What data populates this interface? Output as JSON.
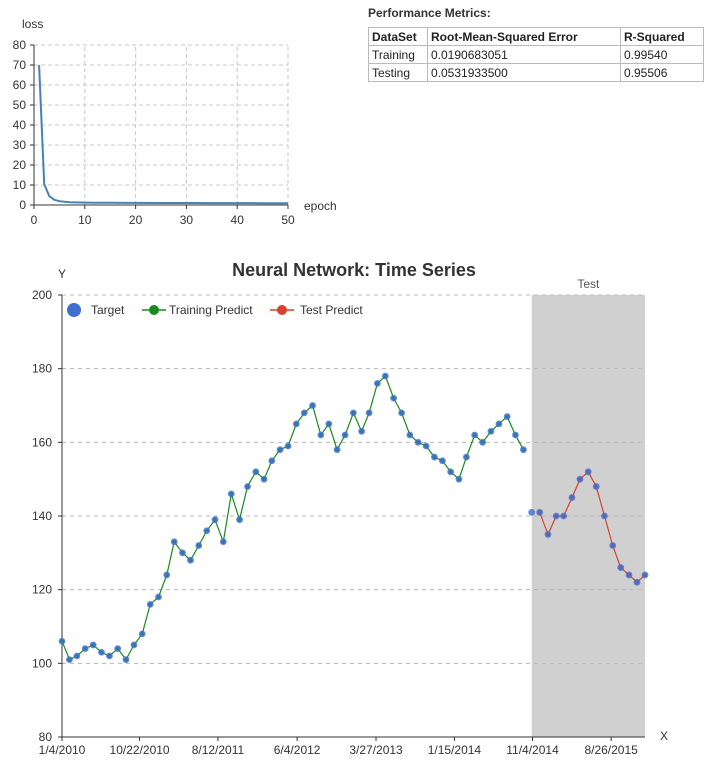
{
  "loss_chart": {
    "type": "line",
    "ylabel": "loss",
    "xlabel": "epoch",
    "xlim": [
      0,
      50
    ],
    "ylim": [
      0,
      80
    ],
    "xticks": [
      0,
      10,
      20,
      30,
      40,
      50
    ],
    "yticks": [
      0,
      10,
      20,
      30,
      40,
      50,
      60,
      70,
      80
    ],
    "color": "#4682b4",
    "x": [
      1,
      2,
      3,
      4,
      5,
      6,
      7,
      8,
      10,
      12,
      15,
      20,
      25,
      30,
      35,
      40,
      45,
      50
    ],
    "y": [
      70,
      10.5,
      4.5,
      2.6,
      1.9,
      1.6,
      1.4,
      1.3,
      1.2,
      1.15,
      1.1,
      1.05,
      1.0,
      1.0,
      0.95,
      0.95,
      0.9,
      0.9
    ]
  },
  "metrics": {
    "title": "Performance Metrics:",
    "headers": [
      "DataSet",
      "Root-Mean-Squared Error",
      "R-Squared"
    ],
    "rows": [
      [
        "Training",
        "0.0190683051",
        "0.99540"
      ],
      [
        "Testing",
        "0.0531933500",
        "0.95506"
      ]
    ]
  },
  "chart_data": {
    "type": "line",
    "title": "Neural Network: Time Series",
    "xlabel": "X",
    "ylabel": "Y",
    "ylim": [
      80,
      200
    ],
    "yticks": [
      80,
      100,
      120,
      140,
      160,
      180,
      200
    ],
    "xticks": [
      "1/4/2010",
      "10/22/2010",
      "8/12/2011",
      "6/4/2012",
      "3/27/2013",
      "1/15/2014",
      "11/4/2014",
      "8/26/2015"
    ],
    "xlim": [
      "1/4/2010",
      "12/31/2015"
    ],
    "test_region": {
      "label": "Test",
      "start": "11/1/2014",
      "end": "12/31/2015",
      "color": "#d0d0d0"
    },
    "legend": {
      "position": "top-left"
    },
    "series": [
      {
        "name": "Target",
        "color": "#3f6fd1",
        "marker": "circle"
      },
      {
        "name": "Training Predict",
        "color": "#1a8a1a",
        "marker": "circle",
        "range": [
          "1/4/2010",
          "10/31/2014"
        ]
      },
      {
        "name": "Test Predict",
        "color": "#d9412a",
        "marker": "circle",
        "range": [
          "11/3/2014",
          "12/31/2015"
        ]
      }
    ],
    "dates": [
      "1/4/2010",
      "2/1/2010",
      "3/1/2010",
      "4/1/2010",
      "5/1/2010",
      "6/1/2010",
      "7/1/2010",
      "8/1/2010",
      "9/1/2010",
      "10/1/2010",
      "11/1/2010",
      "12/1/2010",
      "1/1/2011",
      "2/1/2011",
      "3/1/2011",
      "4/1/2011",
      "5/1/2011",
      "6/1/2011",
      "7/1/2011",
      "8/1/2011",
      "9/1/2011",
      "10/1/2011",
      "11/1/2011",
      "12/1/2011",
      "1/1/2012",
      "2/1/2012",
      "3/1/2012",
      "4/1/2012",
      "5/1/2012",
      "6/1/2012",
      "7/1/2012",
      "8/1/2012",
      "9/1/2012",
      "10/1/2012",
      "11/1/2012",
      "12/1/2012",
      "1/1/2013",
      "2/1/2013",
      "3/1/2013",
      "4/1/2013",
      "5/1/2013",
      "6/1/2013",
      "7/1/2013",
      "8/1/2013",
      "9/1/2013",
      "10/1/2013",
      "11/1/2013",
      "12/1/2013",
      "1/1/2014",
      "2/1/2014",
      "3/1/2014",
      "4/1/2014",
      "5/1/2014",
      "6/1/2014",
      "7/1/2014",
      "8/1/2014",
      "9/1/2014",
      "10/1/2014",
      "11/1/2014",
      "12/1/2014",
      "1/1/2015",
      "2/1/2015",
      "3/1/2015",
      "4/1/2015",
      "5/1/2015",
      "6/1/2015",
      "7/1/2015",
      "8/1/2015",
      "9/1/2015",
      "10/1/2015",
      "11/1/2015",
      "12/1/2015",
      "12/31/2015"
    ],
    "values": [
      106,
      101,
      102,
      104,
      105,
      103,
      102,
      104,
      101,
      105,
      108,
      116,
      118,
      124,
      133,
      130,
      128,
      132,
      136,
      139,
      133,
      146,
      139,
      148,
      152,
      150,
      155,
      158,
      159,
      165,
      168,
      170,
      162,
      165,
      158,
      162,
      168,
      163,
      168,
      176,
      178,
      172,
      168,
      162,
      160,
      159,
      156,
      155,
      152,
      150,
      156,
      162,
      160,
      163,
      165,
      167,
      162,
      158,
      141,
      141,
      135,
      140,
      140,
      145,
      150,
      152,
      148,
      140,
      132,
      126,
      124,
      122,
      124
    ]
  }
}
